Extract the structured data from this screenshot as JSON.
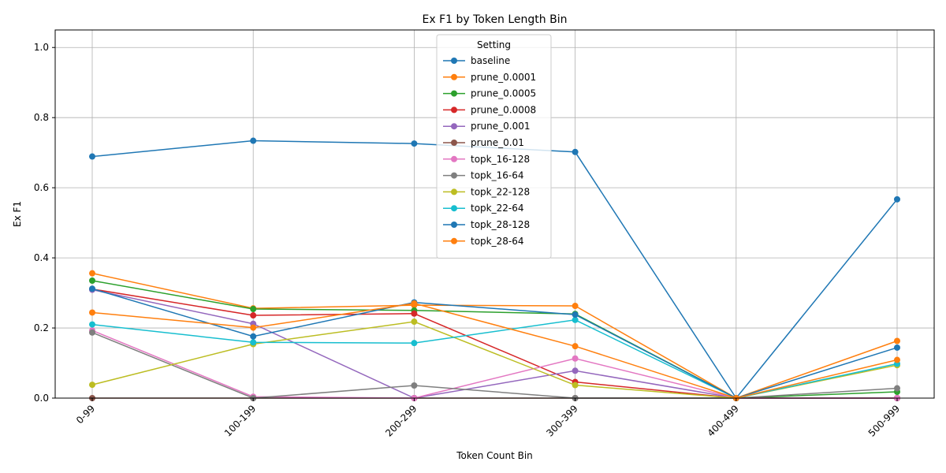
{
  "chart_data": {
    "type": "line",
    "title": "Ex F1 by Token Length Bin",
    "xlabel": "Token Count Bin",
    "ylabel": "Ex F1",
    "categories": [
      "0-99",
      "100-199",
      "200-299",
      "300-399",
      "400-499",
      "500-999"
    ],
    "ylim": [
      0,
      1.05
    ],
    "yticks": [
      "0.0",
      "0.2",
      "0.4",
      "0.6",
      "0.8",
      "1.0"
    ],
    "grid": true,
    "legend": {
      "title": "Setting",
      "placement": "upper-center"
    },
    "series": [
      {
        "name": "baseline",
        "color": "#1f77b4",
        "values": [
          0.689,
          0.734,
          0.726,
          0.702,
          0.0,
          0.567
        ]
      },
      {
        "name": "prune_0.0001",
        "color": "#ff7f0e",
        "values": [
          0.356,
          0.256,
          0.265,
          0.263,
          0.0,
          0.163
        ]
      },
      {
        "name": "prune_0.0005",
        "color": "#2ca02c",
        "values": [
          0.335,
          0.254,
          0.25,
          0.24,
          0.0,
          0.018
        ]
      },
      {
        "name": "prune_0.0008",
        "color": "#d62728",
        "values": [
          0.311,
          0.236,
          0.241,
          0.046,
          0.0,
          0.0
        ]
      },
      {
        "name": "prune_0.001",
        "color": "#9467bd",
        "values": [
          0.309,
          0.212,
          0.0,
          0.078,
          0.0,
          0.0
        ]
      },
      {
        "name": "prune_0.01",
        "color": "#8c564b",
        "values": [
          0.0,
          0.0,
          0.0,
          0.0,
          0.0,
          0.0
        ]
      },
      {
        "name": "topk_16-128",
        "color": "#e377c2",
        "values": [
          0.193,
          0.004,
          0.0,
          0.113,
          0.0,
          0.0
        ]
      },
      {
        "name": "topk_16-64",
        "color": "#7f7f7f",
        "values": [
          0.187,
          0.0,
          0.036,
          0.0,
          0.0,
          0.028
        ]
      },
      {
        "name": "topk_22-128",
        "color": "#bcbd22",
        "values": [
          0.038,
          0.154,
          0.218,
          0.037,
          0.0,
          0.094
        ]
      },
      {
        "name": "topk_22-64",
        "color": "#17becf",
        "values": [
          0.21,
          0.159,
          0.157,
          0.223,
          0.0,
          0.098
        ]
      },
      {
        "name": "topk_28-128",
        "color": "#1f77b4",
        "values": [
          0.312,
          0.176,
          0.273,
          0.238,
          0.0,
          0.144
        ]
      },
      {
        "name": "topk_28-64",
        "color": "#ff7f0e",
        "values": [
          0.244,
          0.201,
          0.27,
          0.148,
          0.0,
          0.109
        ]
      }
    ]
  }
}
